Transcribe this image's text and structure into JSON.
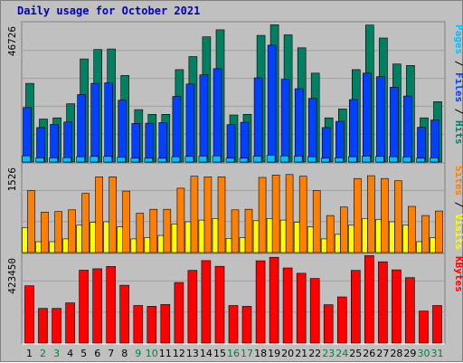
{
  "chart_data": {
    "type": "bar",
    "title": "Daily usage for October 2021",
    "days": [
      "1",
      "2",
      "3",
      "4",
      "5",
      "6",
      "7",
      "8",
      "9",
      "10",
      "11",
      "12",
      "13",
      "14",
      "15",
      "16",
      "17",
      "18",
      "19",
      "20",
      "21",
      "22",
      "23",
      "24",
      "25",
      "26",
      "27",
      "28",
      "29",
      "30",
      "31"
    ],
    "weekend_days": [
      "2",
      "3",
      "9",
      "10",
      "16",
      "17",
      "23",
      "24",
      "30",
      "31"
    ],
    "colors": {
      "hits": "#008060",
      "files": "#0040ff",
      "pages": "#00c0ff",
      "visits": "#ffff00",
      "sites": "#ff8000",
      "kbytes": "#ff0000",
      "weekday_label": "#000000",
      "weekend_label": "#008040",
      "background": "#c0c0c0",
      "title": "#0000c0"
    },
    "panels": [
      {
        "id": "hits-files-pages",
        "ymax_label": "46726",
        "ymax": 46726,
        "legend": [
          {
            "text": "Pages",
            "color": "#00c0ff"
          },
          {
            "text": " / ",
            "color": "#000000"
          },
          {
            "text": "Files",
            "color": "#0040ff"
          },
          {
            "text": " / ",
            "color": "#000000"
          },
          {
            "text": "Hits",
            "color": "#008060"
          }
        ],
        "series": [
          {
            "name": "Hits",
            "color": "#008060",
            "values": [
              26700,
              14600,
              15000,
              19800,
              35000,
              38200,
              38400,
              29400,
              17800,
              16200,
              16200,
              31400,
              35800,
              42500,
              44900,
              16000,
              16200,
              43000,
              46600,
              43200,
              38800,
              30200,
              15000,
              18000,
              31400,
              46500,
              42100,
              33300,
              32800,
              15000,
              20500
            ]
          },
          {
            "name": "Files",
            "color": "#0040ff",
            "values": [
              18500,
              11700,
              12800,
              13600,
              22900,
              26700,
              26900,
              21000,
              13100,
              13200,
              13400,
              22300,
              26500,
              29600,
              31700,
              12700,
              13500,
              28600,
              39700,
              28100,
              24900,
              21600,
              11700,
              13800,
              21200,
              30200,
              29000,
              25400,
              22400,
              11800,
              14300
            ]
          },
          {
            "name": "Pages",
            "color": "#00c0ff",
            "values": [
              2100,
              1400,
              1400,
              1500,
              1800,
              1900,
              1900,
              1600,
              1300,
              1300,
              1300,
              1800,
              1900,
              2000,
              2100,
              1300,
              1300,
              2000,
              2300,
              2100,
              2000,
              1800,
              1300,
              1400,
              1800,
              2000,
              1900,
              1800,
              1700,
              1300,
              1400
            ]
          }
        ]
      },
      {
        "id": "visits-sites",
        "ymax_label": "1526",
        "ymax": 1526,
        "legend": [
          {
            "text": "Sites",
            "color": "#ff8000"
          },
          {
            "text": " / ",
            "color": "#000000"
          },
          {
            "text": "Visits",
            "color": "#ffff00"
          }
        ],
        "series": [
          {
            "name": "Visits",
            "color": "#ffff00",
            "values": [
              440,
              190,
              190,
              240,
              480,
              530,
              540,
              450,
              240,
              260,
              300,
              500,
              540,
              570,
              600,
              250,
              260,
              560,
              600,
              570,
              530,
              450,
              240,
              320,
              480,
              600,
              580,
              540,
              480,
              190,
              260
            ]
          },
          {
            "name": "Sites",
            "color": "#ff8000",
            "values": [
              1090,
              710,
              720,
              750,
              1040,
              1330,
              1330,
              1080,
              690,
              760,
              760,
              1130,
              1340,
              1330,
              1330,
              750,
              760,
              1320,
              1360,
              1370,
              1340,
              1090,
              650,
              800,
              1300,
              1350,
              1300,
              1260,
              810,
              650,
              730
            ]
          }
        ]
      },
      {
        "id": "kbytes",
        "ymax_label": "423450",
        "ymax": 423450,
        "legend": [
          {
            "text": "KBytes",
            "color": "#ff0000"
          }
        ],
        "series": [
          {
            "name": "KBytes",
            "color": "#ff0000",
            "values": [
              279000,
              169000,
              169000,
              196000,
              355000,
              362000,
              373000,
              282000,
              183000,
              179000,
              188000,
              295000,
              354000,
              402000,
              374000,
              183000,
              179000,
              401000,
              418000,
              366000,
              340000,
              315000,
              187000,
              225000,
              354000,
              426000,
              396000,
              357000,
              319000,
              156000,
              183000
            ]
          }
        ]
      }
    ]
  }
}
